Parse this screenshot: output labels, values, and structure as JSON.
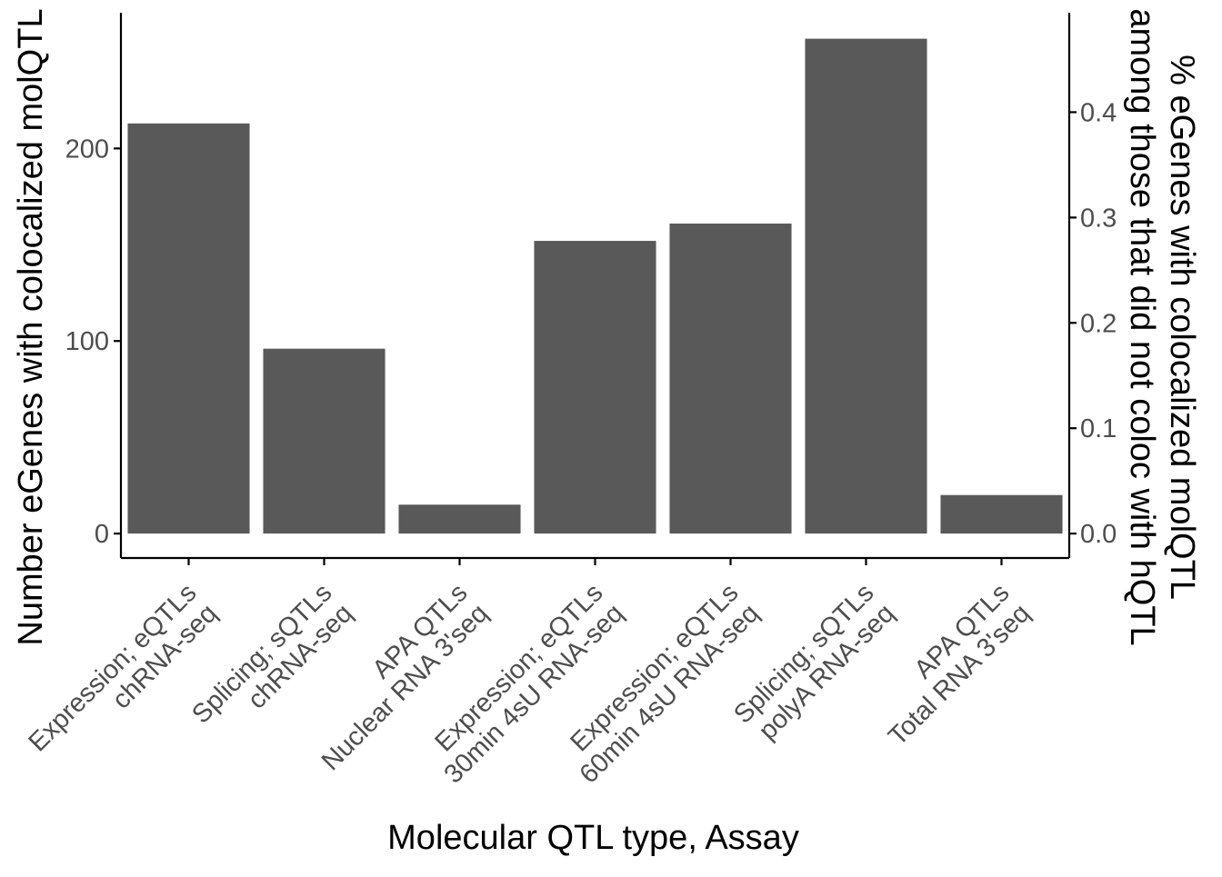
{
  "chart_data": {
    "type": "bar",
    "categories": [
      [
        "Expression; eQTLs",
        "chRNA-seq"
      ],
      [
        "Splicing; sQTLs",
        "chRNA-seq"
      ],
      [
        "APA QTLs",
        "Nuclear RNA 3'seq"
      ],
      [
        "Expression; eQTLs",
        "30min 4sU RNA-seq"
      ],
      [
        "Expression; eQTLs",
        "60min 4sU RNA-seq"
      ],
      [
        "Splicing; sQTLs",
        "polyA RNA-seq"
      ],
      [
        "APA QTLs",
        "Total RNA 3'seq"
      ]
    ],
    "values": [
      213,
      96,
      15,
      152,
      161,
      257,
      20
    ],
    "xlabel": "Molecular QTL type, Assay",
    "ylabel": "Number eGenes with colocalized molQTL",
    "ylabel_right": [
      "% eGenes with colocalized molQTL",
      "among those that did not coloc with hQTL"
    ],
    "ylim": [
      -12.7,
      270.5
    ],
    "yticks": [
      0,
      100,
      200
    ],
    "y2lim": [
      -0.0232,
      0.4944
    ],
    "y2ticks": [
      0.0,
      0.1,
      0.2,
      0.3,
      0.4
    ],
    "y2ticklabels": [
      "0.0",
      "0.1",
      "0.2",
      "0.3",
      "0.4"
    ],
    "grid": false,
    "legend": "none",
    "colors": {
      "bar": "#595959",
      "axis": "#000000",
      "tick_text": "#4d4d4d"
    }
  }
}
